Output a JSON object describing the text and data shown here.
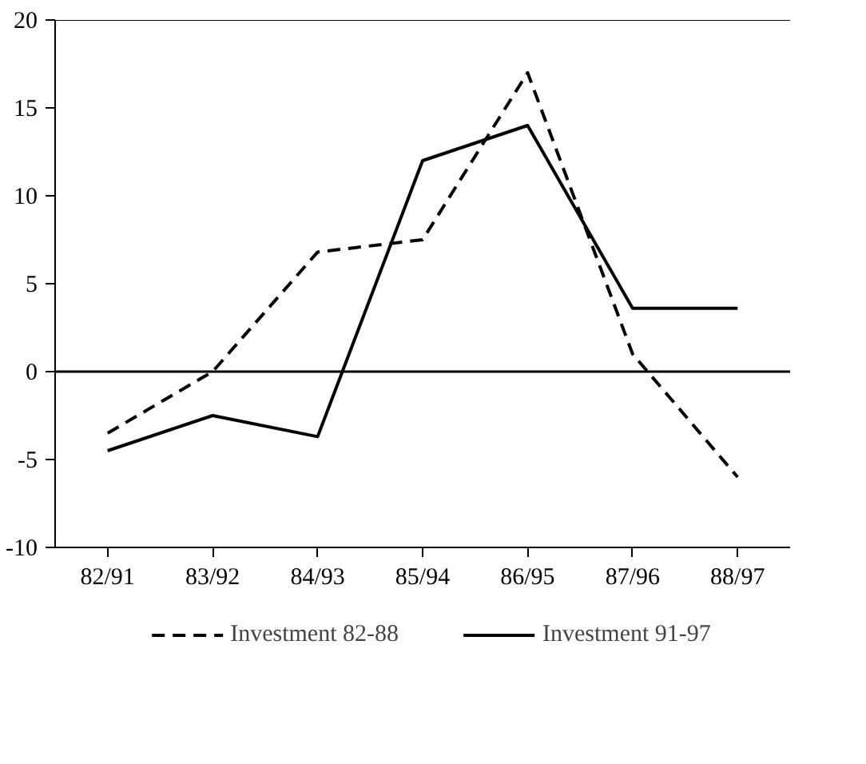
{
  "chart_data": {
    "type": "line",
    "categories": [
      "82/91",
      "83/92",
      "84/93",
      "85/94",
      "86/95",
      "87/96",
      "88/97"
    ],
    "series": [
      {
        "name": "Investment 82-88",
        "color": "#000000",
        "line_style": "dashed",
        "values": [
          -3.5,
          0,
          6.8,
          7.5,
          17,
          1,
          -6
        ]
      },
      {
        "name": "Investment 91-97",
        "color": "#000000",
        "line_style": "solid",
        "values": [
          -4.5,
          -2.5,
          -3.7,
          12,
          14,
          3.6,
          3.6
        ]
      }
    ],
    "ylim": [
      -10,
      20
    ],
    "yticks": [
      -10,
      -5,
      0,
      5,
      10,
      15,
      20
    ],
    "ref_lines": [
      {
        "axis": "y",
        "value": 0,
        "color": "#000000"
      }
    ],
    "grid": false,
    "legend": "bottom",
    "marker": "none"
  }
}
